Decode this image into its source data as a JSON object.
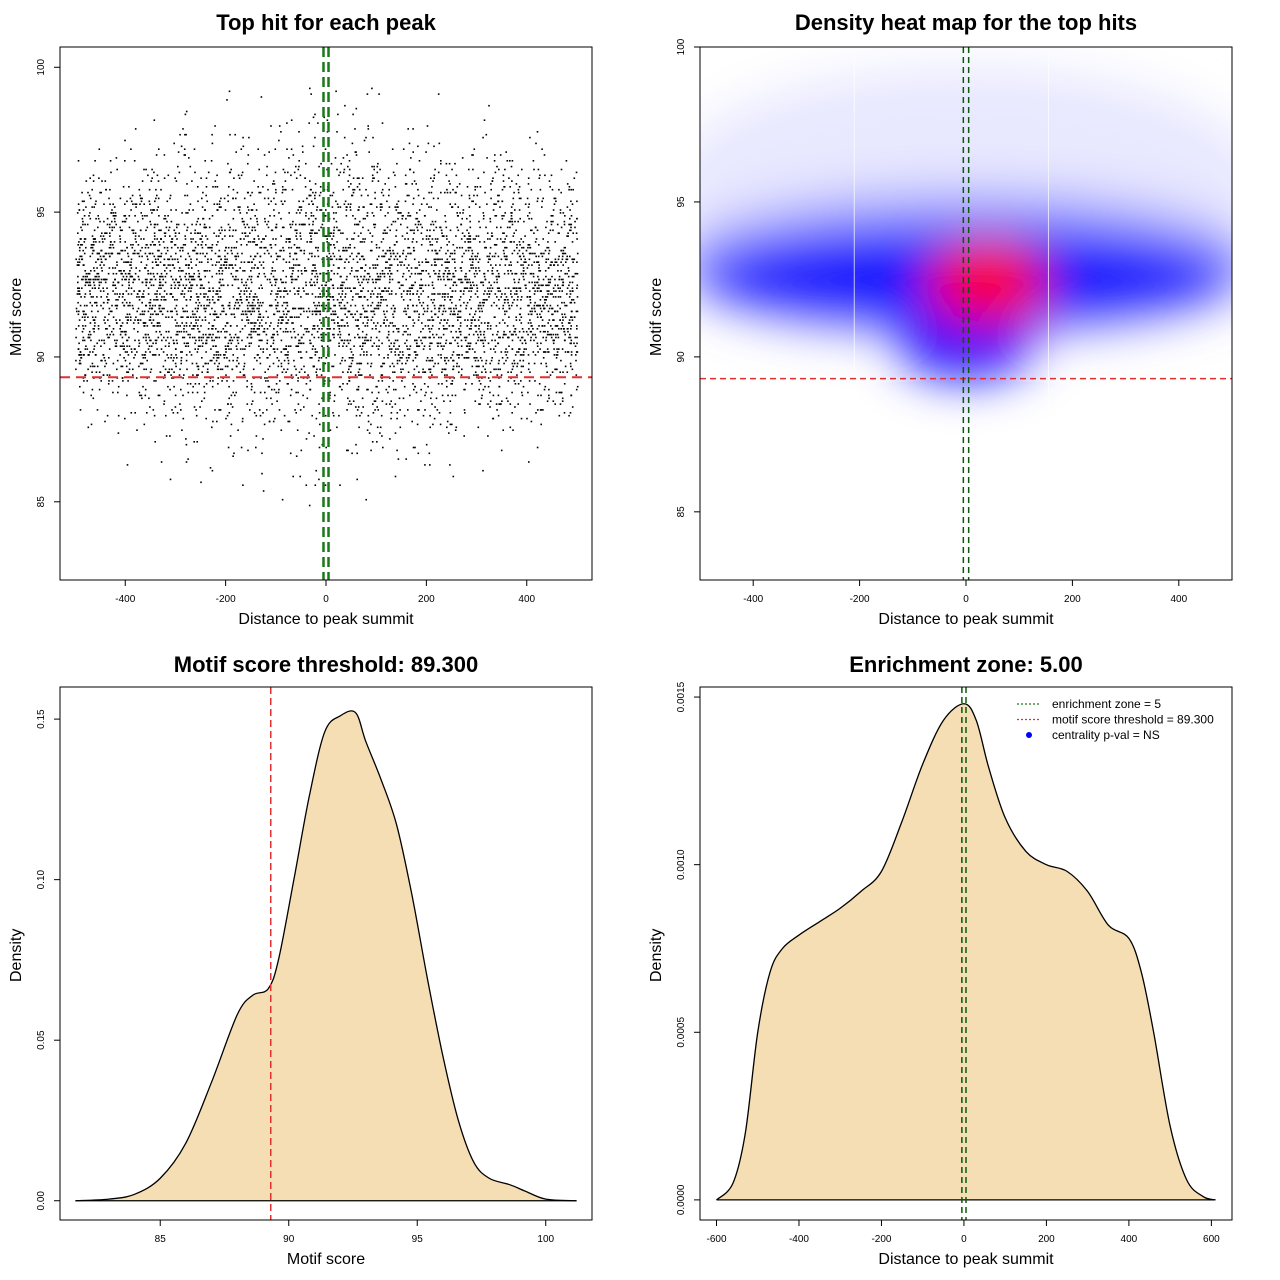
{
  "chart_data": [
    {
      "id": "scatter",
      "type": "scatter",
      "title": "Top hit for each peak",
      "xlabel": "Distance to peak summit",
      "ylabel": "Motif score",
      "xlim": [
        -530,
        530
      ],
      "ylim": [
        82.3,
        100.7
      ],
      "xticks": [
        -400,
        -200,
        0,
        200,
        400
      ],
      "yticks": [
        85,
        90,
        95,
        100
      ],
      "x_range": [
        -500,
        500
      ],
      "y_mean": 92.3,
      "y_sd": 2.6,
      "n_points": 5500,
      "score_threshold": 89.3,
      "enrichment_zone": [
        -5,
        5
      ],
      "threshold_color": "#e03030",
      "zone_color": "#1a7a1a"
    },
    {
      "id": "heatmap",
      "type": "heatmap",
      "title": "Density heat map for the top hits",
      "xlabel": "Distance to peak summit",
      "ylabel": "Motif score",
      "xlim": [
        -500,
        500
      ],
      "ylim": [
        82.8,
        100
      ],
      "xticks": [
        -400,
        -200,
        0,
        200,
        400
      ],
      "yticks": [
        85,
        90,
        95,
        100
      ],
      "peak_center": [
        40,
        92.4
      ],
      "score_threshold": 89.3,
      "enrichment_zone": [
        -5,
        5
      ],
      "colors": {
        "low": "#ffffff",
        "mid": "#0000ff",
        "high": "#ff0000"
      }
    },
    {
      "id": "score_density",
      "type": "area",
      "title": "Motif score threshold: 89.300",
      "xlabel": "Motif score",
      "ylabel": "Density",
      "xlim": [
        81.1,
        101.8
      ],
      "ylim": [
        -0.006,
        0.16
      ],
      "xticks": [
        85,
        90,
        95,
        100
      ],
      "yticks": [
        0.0,
        0.05,
        0.1,
        0.15
      ],
      "ytick_labels": [
        "0.00",
        "0.05",
        "0.10",
        "0.15"
      ],
      "x": [
        81.7,
        83.0,
        84.0,
        85.0,
        86.0,
        87.0,
        88.0,
        88.6,
        89.2,
        89.6,
        90.2,
        90.8,
        91.4,
        92.0,
        92.6,
        93.0,
        93.6,
        94.2,
        94.8,
        95.4,
        96.0,
        96.6,
        97.2,
        97.8,
        98.6,
        99.2,
        100.0,
        101.2
      ],
      "values": [
        0.0,
        0.0005,
        0.002,
        0.007,
        0.018,
        0.037,
        0.058,
        0.064,
        0.066,
        0.075,
        0.1,
        0.126,
        0.146,
        0.151,
        0.152,
        0.143,
        0.131,
        0.117,
        0.095,
        0.069,
        0.045,
        0.025,
        0.012,
        0.007,
        0.005,
        0.003,
        0.0005,
        0.0
      ],
      "fill": "#f5deb3",
      "score_threshold": 89.3,
      "threshold_color": "#e03030"
    },
    {
      "id": "distance_density",
      "type": "area",
      "title": "Enrichment zone: 5.00",
      "xlabel": "Distance to peak summit",
      "ylabel": "Density",
      "xlim": [
        -640,
        650
      ],
      "ylim": [
        -6e-05,
        0.00153
      ],
      "xticks": [
        -600,
        -400,
        -200,
        0,
        200,
        400,
        600
      ],
      "yticks": [
        0.0,
        0.0005,
        0.001,
        0.0015
      ],
      "ytick_labels": [
        "0.0000",
        "0.0005",
        "0.0010",
        "0.0015"
      ],
      "x": [
        -600,
        -560,
        -530,
        -500,
        -470,
        -440,
        -400,
        -350,
        -300,
        -250,
        -200,
        -150,
        -100,
        -50,
        0,
        30,
        60,
        100,
        150,
        200,
        250,
        300,
        350,
        400,
        430,
        460,
        500,
        540,
        580,
        610
      ],
      "values": [
        0.0,
        5e-05,
        0.0002,
        0.0005,
        0.00068,
        0.00075,
        0.00079,
        0.00083,
        0.00087,
        0.00092,
        0.00098,
        0.00113,
        0.0013,
        0.00143,
        0.00148,
        0.00143,
        0.00129,
        0.00114,
        0.00104,
        0.001,
        0.00098,
        0.00092,
        0.00082,
        0.00078,
        0.00068,
        0.0005,
        0.00022,
        6e-05,
        1e-05,
        0.0
      ],
      "fill": "#f5deb3",
      "enrichment_zone": [
        -5,
        5
      ],
      "zone_color": "#1a7a1a",
      "legend": [
        {
          "label": "enrichment zone = 5",
          "color": "#1a7a1a",
          "style": "dotted-line"
        },
        {
          "label": "motif score threshold = 89.300",
          "color": "#e03030",
          "style": "dotted-line"
        },
        {
          "label": "centrality p-val = NS",
          "color": "#0000ff",
          "style": "dot"
        }
      ]
    }
  ]
}
